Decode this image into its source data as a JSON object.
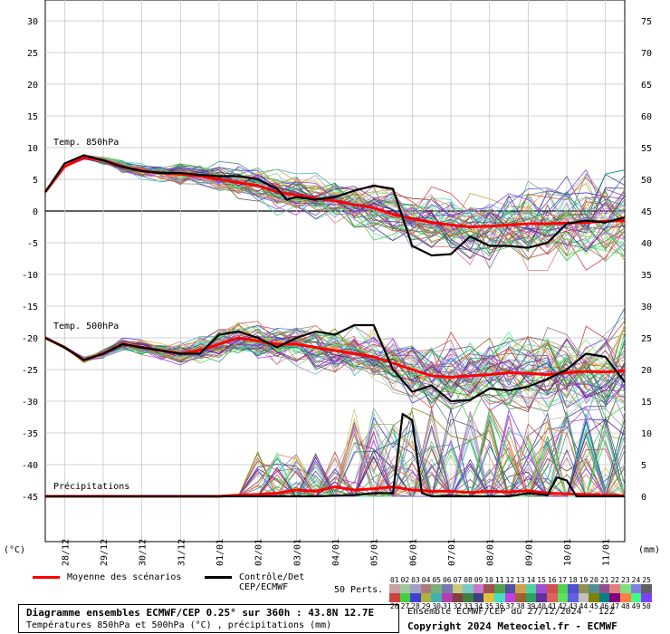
{
  "chart_data": {
    "type": "line",
    "title": "Diagramme ensembles ECMWF/CEP 0.25° sur 360h : 43.8N 12.7E",
    "subtitle": "Températures 850hPa et 500hPa (°C) , précipitations (mm)",
    "left_axis": {
      "unit": "(°C)",
      "ticks": [
        30,
        25,
        20,
        15,
        10,
        5,
        0,
        -5,
        -10,
        -15,
        -20,
        -25,
        -30,
        -35,
        -40,
        -45
      ],
      "range": [
        -53,
        33
      ]
    },
    "right_axis": {
      "unit": "(mm)",
      "ticks": [
        75,
        70,
        65,
        60,
        55,
        50,
        45,
        40,
        35,
        30,
        25,
        20,
        15,
        10,
        5,
        0
      ]
    },
    "x_ticks": [
      "28/12",
      "29/12",
      "30/12",
      "31/12",
      "01/01",
      "02/01",
      "03/01",
      "04/01",
      "05/01",
      "06/01",
      "07/01",
      "08/01",
      "09/01",
      "10/01",
      "11/01"
    ],
    "x_hours_range": [
      0,
      360
    ],
    "panels": [
      {
        "label": "Temp. 850hPa",
        "series": [
          {
            "name": "Moyenne des scénarios",
            "color": "#ff0000",
            "points": [
              [
                0,
                3
              ],
              [
                12,
                7
              ],
              [
                24,
                8.5
              ],
              [
                36,
                8
              ],
              [
                48,
                7
              ],
              [
                60,
                6.3
              ],
              [
                72,
                6
              ],
              [
                84,
                5.8
              ],
              [
                96,
                5.5
              ],
              [
                108,
                5
              ],
              [
                120,
                4.5
              ],
              [
                132,
                4
              ],
              [
                144,
                3
              ],
              [
                156,
                2.5
              ],
              [
                168,
                2
              ],
              [
                180,
                1.6
              ],
              [
                192,
                1
              ],
              [
                204,
                0.5
              ],
              [
                216,
                -0.5
              ],
              [
                228,
                -1.2
              ],
              [
                240,
                -1.8
              ],
              [
                252,
                -2.2
              ],
              [
                264,
                -2.5
              ],
              [
                276,
                -2.4
              ],
              [
                288,
                -2.2
              ],
              [
                300,
                -2
              ],
              [
                312,
                -2
              ],
              [
                324,
                -1.9
              ],
              [
                336,
                -1.8
              ],
              [
                348,
                -1.6
              ],
              [
                360,
                -1.5
              ]
            ]
          },
          {
            "name": "Contrôle/Det CEP/ECMWF",
            "color": "#000000",
            "points": [
              [
                0,
                3
              ],
              [
                12,
                7.5
              ],
              [
                24,
                8.8
              ],
              [
                36,
                8
              ],
              [
                48,
                7
              ],
              [
                60,
                6.3
              ],
              [
                72,
                6
              ],
              [
                84,
                6
              ],
              [
                96,
                5.7
              ],
              [
                108,
                5.5
              ],
              [
                120,
                5.5
              ],
              [
                132,
                5
              ],
              [
                144,
                3.5
              ],
              [
                150,
                1.8
              ],
              [
                156,
                2.2
              ],
              [
                168,
                1.8
              ],
              [
                180,
                2.2
              ],
              [
                192,
                3.2
              ],
              [
                204,
                4
              ],
              [
                216,
                3.5
              ],
              [
                228,
                -5.5
              ],
              [
                240,
                -7
              ],
              [
                252,
                -6.8
              ],
              [
                264,
                -4
              ],
              [
                276,
                -5.5
              ],
              [
                288,
                -5.5
              ],
              [
                300,
                -5.8
              ],
              [
                312,
                -5
              ],
              [
                324,
                -2
              ],
              [
                336,
                -1.5
              ],
              [
                348,
                -1.8
              ],
              [
                360,
                -1
              ]
            ]
          }
        ]
      },
      {
        "label": "Temp. 500hPa",
        "series": [
          {
            "name": "Moyenne des scénarios",
            "color": "#ff0000",
            "points": [
              [
                0,
                -20
              ],
              [
                12,
                -21.5
              ],
              [
                24,
                -23.5
              ],
              [
                36,
                -22.5
              ],
              [
                48,
                -21
              ],
              [
                60,
                -21.5
              ],
              [
                72,
                -22
              ],
              [
                84,
                -22.5
              ],
              [
                96,
                -22
              ],
              [
                108,
                -21
              ],
              [
                120,
                -20
              ],
              [
                132,
                -20.5
              ],
              [
                144,
                -21
              ],
              [
                156,
                -21
              ],
              [
                168,
                -21.5
              ],
              [
                180,
                -22
              ],
              [
                192,
                -22.5
              ],
              [
                204,
                -23
              ],
              [
                216,
                -24
              ],
              [
                228,
                -25
              ],
              [
                240,
                -26
              ],
              [
                252,
                -26.2
              ],
              [
                264,
                -26
              ],
              [
                276,
                -25.8
              ],
              [
                288,
                -25.5
              ],
              [
                300,
                -25.6
              ],
              [
                312,
                -25.8
              ],
              [
                324,
                -25.5
              ],
              [
                336,
                -25.3
              ],
              [
                348,
                -25.4
              ],
              [
                360,
                -25.2
              ]
            ]
          },
          {
            "name": "Contrôle/Det CEP/ECMWF",
            "color": "#000000",
            "points": [
              [
                0,
                -20
              ],
              [
                12,
                -21.5
              ],
              [
                24,
                -23.5
              ],
              [
                36,
                -22.5
              ],
              [
                48,
                -21
              ],
              [
                60,
                -21.5
              ],
              [
                72,
                -22
              ],
              [
                84,
                -22.5
              ],
              [
                96,
                -22.5
              ],
              [
                108,
                -19.5
              ],
              [
                120,
                -19
              ],
              [
                132,
                -20
              ],
              [
                144,
                -21.5
              ],
              [
                156,
                -20
              ],
              [
                168,
                -19
              ],
              [
                180,
                -19.5
              ],
              [
                192,
                -18
              ],
              [
                204,
                -18
              ],
              [
                216,
                -25
              ],
              [
                228,
                -28.5
              ],
              [
                240,
                -27.5
              ],
              [
                252,
                -30
              ],
              [
                264,
                -29.8
              ],
              [
                276,
                -28
              ],
              [
                288,
                -28.3
              ],
              [
                300,
                -27.7
              ],
              [
                312,
                -26.5
              ],
              [
                324,
                -25
              ],
              [
                336,
                -22.5
              ],
              [
                348,
                -23
              ],
              [
                360,
                -27
              ]
            ]
          }
        ]
      },
      {
        "label": "Précipitations",
        "series": [
          {
            "name": "Moyenne des scénarios",
            "color": "#ff0000",
            "points": [
              [
                0,
                0
              ],
              [
                36,
                0
              ],
              [
                72,
                0
              ],
              [
                108,
                0
              ],
              [
                120,
                0.2
              ],
              [
                132,
                0.3
              ],
              [
                144,
                0.5
              ],
              [
                156,
                1
              ],
              [
                168,
                0.8
              ],
              [
                180,
                1.5
              ],
              [
                192,
                1
              ],
              [
                204,
                1.2
              ],
              [
                216,
                1.5
              ],
              [
                228,
                1
              ],
              [
                240,
                0.8
              ],
              [
                252,
                0.8
              ],
              [
                264,
                0.6
              ],
              [
                276,
                0.8
              ],
              [
                288,
                0.7
              ],
              [
                300,
                0.9
              ],
              [
                312,
                0.5
              ],
              [
                324,
                0.4
              ],
              [
                336,
                0.3
              ],
              [
                348,
                0.2
              ],
              [
                360,
                0.1
              ]
            ]
          },
          {
            "name": "Contrôle/Det CEP/ECMWF",
            "color": "#000000",
            "points": [
              [
                0,
                0
              ],
              [
                108,
                0
              ],
              [
                168,
                0
              ],
              [
                192,
                0.2
              ],
              [
                204,
                0.5
              ],
              [
                216,
                0.5
              ],
              [
                222,
                13
              ],
              [
                228,
                12
              ],
              [
                234,
                0.5
              ],
              [
                240,
                0
              ],
              [
                264,
                0
              ],
              [
                288,
                0
              ],
              [
                300,
                0.5
              ],
              [
                312,
                0.2
              ],
              [
                318,
                3
              ],
              [
                324,
                2.5
              ],
              [
                330,
                0
              ],
              [
                360,
                0
              ]
            ]
          }
        ]
      }
    ],
    "legend": [
      {
        "label": "Moyenne des scénarios",
        "color": "#ff0000"
      },
      {
        "label": "Contrôle/Det",
        "label2": "CEP/ECMWF",
        "color": "#000000"
      }
    ],
    "perturbations": {
      "label": "50 Perts.",
      "row1": [
        "01",
        "02",
        "03",
        "04",
        "05",
        "06",
        "07",
        "08",
        "09",
        "10",
        "11",
        "12",
        "13",
        "14",
        "15",
        "16",
        "17",
        "18",
        "19",
        "20",
        "21",
        "22",
        "23",
        "24",
        "25"
      ],
      "row2": [
        "26",
        "27",
        "28",
        "29",
        "30",
        "31",
        "32",
        "33",
        "34",
        "35",
        "36",
        "37",
        "38",
        "39",
        "40",
        "41",
        "42",
        "43",
        "44",
        "45",
        "46",
        "47",
        "48",
        "49",
        "50"
      ],
      "colors_row1": [
        "#c8a0a0",
        "#a0c8a0",
        "#a0a0c8",
        "#b07878",
        "#78b078",
        "#7878b0",
        "#c8c878",
        "#78c8c8",
        "#c878c8",
        "#a05050",
        "#50a050",
        "#5050a0",
        "#d0a050",
        "#50d0a0",
        "#a050d0",
        "#d05050",
        "#50d050",
        "#5050d0",
        "#909050",
        "#509090",
        "#905090",
        "#e08080",
        "#80e080",
        "#8080e0",
        "#606060"
      ],
      "colors_row2": [
        "#d04040",
        "#40d040",
        "#4040d0",
        "#b0b040",
        "#40b0b0",
        "#b040b0",
        "#804040",
        "#408040",
        "#404080",
        "#e0c040",
        "#40e0c0",
        "#c040e0",
        "#a06030",
        "#30a060",
        "#6030a0",
        "#e06060",
        "#60e060",
        "#6060e0",
        "#c0c0c0",
        "#808000",
        "#008080",
        "#800080",
        "#ff8040",
        "#40ff80",
        "#8040ff"
      ]
    },
    "grid": true
  },
  "footer": {
    "title_line1": "Diagramme ensembles ECMWF/CEP 0.25° sur 360h : 43.8N 12.7E",
    "title_line2": "Températures 850hPa et 500hPa (°C) , précipitations (mm)",
    "run_info": "Ensemble ECMWF/CEP du 27/12/2024 - 12Z",
    "copyright": "Copyright 2024 Meteociel.fr - ECMWF"
  }
}
